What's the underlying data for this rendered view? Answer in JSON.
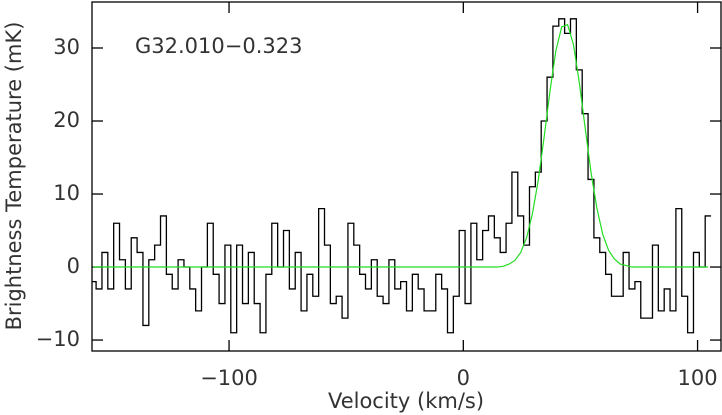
{
  "chart_data": {
    "type": "line",
    "annotation": "G32.010−0.323",
    "xlabel": "Velocity (km/s)",
    "ylabel": "Brightness Temperature (mK)",
    "xlim": [
      -158.5,
      110
    ],
    "ylim": [
      -11.5,
      36.3
    ],
    "xticks": [
      {
        "value": -100,
        "label": "−100"
      },
      0,
      100
    ],
    "yticks": [
      {
        "value": -10,
        "label": "−10"
      },
      0,
      10,
      20,
      30
    ],
    "x": [
      -158,
      -155.5,
      -153,
      -150.5,
      -148,
      -145.5,
      -143,
      -140.5,
      -138,
      -135.5,
      -133,
      -130.5,
      -128,
      -125.5,
      -123,
      -120.5,
      -118,
      -115.5,
      -113,
      -110.5,
      -108,
      -105.5,
      -103,
      -100.5,
      -98,
      -95.5,
      -93,
      -90.5,
      -88,
      -85.5,
      -83,
      -80.5,
      -78,
      -75.5,
      -73,
      -70.5,
      -68,
      -65.5,
      -63,
      -60.5,
      -58,
      -55.5,
      -53,
      -50.5,
      -48,
      -45.5,
      -43,
      -40.5,
      -38,
      -35.5,
      -33,
      -30.5,
      -28,
      -25.5,
      -23,
      -20.5,
      -18,
      -15.5,
      -13,
      -10.5,
      -8,
      -5.5,
      -3,
      -0.5,
      2,
      4.5,
      7,
      9.5,
      12,
      14.5,
      17,
      19.5,
      22,
      24.5,
      27,
      29.5,
      32,
      34.5,
      37,
      39.5,
      42,
      44.5,
      47,
      49.5,
      52,
      54.5,
      57,
      59.5,
      62,
      64.5,
      67,
      69.5,
      72,
      74.5,
      77,
      79.5,
      82,
      84.5,
      87,
      89.5,
      92,
      94.5,
      97,
      99.5,
      102,
      104.5
    ],
    "series": [
      {
        "name": "spectrum",
        "color": "#000000",
        "style": "step",
        "values": [
          -2,
          -3,
          2,
          -3,
          6,
          1,
          -3,
          4,
          2,
          -8,
          1,
          3,
          7,
          -1,
          -3,
          1,
          0,
          -3,
          -6,
          0,
          6,
          -1,
          -5,
          3,
          -9,
          3,
          -5,
          2,
          -5,
          -9,
          -1,
          6,
          0,
          5,
          -3,
          2,
          -6,
          -1,
          -4,
          8,
          3,
          -5,
          -4,
          -7,
          6,
          3,
          -1,
          -3,
          1,
          -4,
          -5,
          1,
          -3,
          -2,
          -6,
          -1,
          -3,
          -6,
          -6,
          -1,
          -3,
          -9,
          -4,
          5,
          -5,
          6,
          1,
          5,
          7,
          4,
          2,
          6,
          13,
          7,
          3,
          11,
          13,
          20,
          26,
          33,
          34,
          32,
          34,
          27,
          21,
          12,
          4,
          2,
          -1,
          -4,
          -4,
          2,
          -3,
          -2,
          -7,
          -7,
          3,
          -6,
          -3,
          -6,
          8,
          -4,
          -9,
          2,
          0,
          7
        ]
      },
      {
        "name": "fit",
        "color": "#22dd22",
        "style": "line",
        "values": [
          0,
          0,
          0,
          0,
          0,
          0,
          0,
          0,
          0,
          0,
          0,
          0,
          0,
          0,
          0,
          0,
          0,
          0,
          0,
          0,
          0,
          0,
          0,
          0,
          0,
          0,
          0,
          0,
          0,
          0,
          0,
          0,
          0,
          0,
          0,
          0,
          0,
          0,
          0,
          0,
          0,
          0,
          0,
          0,
          0,
          0,
          0,
          0,
          0,
          0,
          0,
          0,
          0,
          0,
          0,
          0,
          0,
          0,
          0,
          0,
          0,
          0,
          0,
          0,
          0,
          0,
          0,
          0,
          0,
          0,
          0.1,
          0.4,
          0.9,
          2.0,
          4.0,
          7.3,
          11.9,
          17.8,
          24.1,
          29.6,
          32.9,
          33.2,
          30.5,
          25.3,
          19.1,
          13.0,
          8.1,
          4.5,
          2.3,
          1.1,
          0.4,
          0.2,
          0,
          0,
          0,
          0,
          0,
          0,
          0,
          0,
          0,
          0,
          0,
          0,
          0,
          0
        ]
      }
    ]
  }
}
